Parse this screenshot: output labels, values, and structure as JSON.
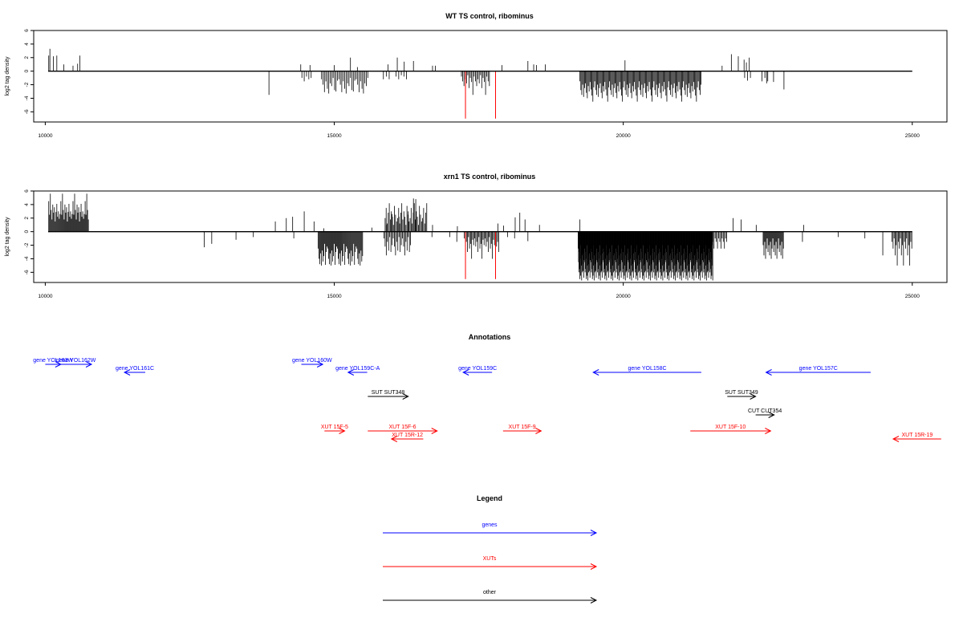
{
  "colors": {
    "genes": "#0000ff",
    "xuts": "#ff0000",
    "other": "#000000",
    "marker": "#ff0000"
  },
  "chart_data": [
    {
      "type": "bar",
      "title": "WT TS control, ribominus",
      "ylabel": "log2 tag density",
      "xlim": [
        9800,
        25600
      ],
      "ylim": [
        -7.5,
        6
      ],
      "xticks": [
        10000,
        15000,
        20000,
        25000
      ],
      "yticks": [
        -6,
        -4,
        -2,
        0,
        2,
        4,
        6
      ],
      "baseline": {
        "x_from": 10050,
        "x_to": 25000
      },
      "markers": [
        17270,
        17790
      ],
      "marker_y": -7,
      "positive_spikes": [
        [
          10060,
          2.3
        ],
        [
          10080,
          3.3
        ],
        [
          10140,
          2.2
        ],
        [
          10200,
          2.3
        ],
        [
          10320,
          1.0
        ],
        [
          10480,
          0.8
        ],
        [
          10560,
          1.1
        ],
        [
          10600,
          2.3
        ],
        [
          14420,
          1.0
        ],
        [
          14580,
          0.9
        ],
        [
          15000,
          0.9
        ],
        [
          15280,
          2.0
        ],
        [
          15400,
          0.6
        ],
        [
          15930,
          1.0
        ],
        [
          16090,
          2.0
        ],
        [
          16210,
          1.4
        ],
        [
          16370,
          1.5
        ],
        [
          16700,
          0.8
        ],
        [
          16750,
          0.8
        ],
        [
          17900,
          0.9
        ],
        [
          18350,
          1.5
        ],
        [
          18450,
          1.0
        ],
        [
          18500,
          0.9
        ],
        [
          18650,
          1.0
        ],
        [
          20030,
          1.6
        ],
        [
          21710,
          0.8
        ],
        [
          21870,
          2.5
        ],
        [
          21990,
          2.2
        ],
        [
          22090,
          1.7
        ],
        [
          22130,
          1.3
        ],
        [
          22180,
          2.0
        ]
      ],
      "dense_regions": [
        {
          "from": 14440,
          "to": 14600,
          "step": 40,
          "pattern": [
            -1.0,
            -1.5,
            -0.8,
            -1.2
          ]
        },
        {
          "from": 14780,
          "to": 15600,
          "step": 25,
          "pattern": [
            -1.2,
            -2.0,
            -3.1,
            -1.5,
            -2.6,
            -3.3,
            -1.8,
            -2.2,
            -1.0,
            -2.8,
            -3.0,
            -1.4
          ]
        },
        {
          "from": 15850,
          "to": 15950,
          "step": 50,
          "pattern": [
            -1.2,
            -0.8
          ]
        },
        {
          "from": 16070,
          "to": 16250,
          "step": 45,
          "pattern": [
            -0.8,
            -1.2,
            -0.6
          ]
        },
        {
          "from": 17200,
          "to": 17700,
          "step": 22,
          "pattern": [
            -0.8,
            -1.5,
            -2.2,
            -1.2,
            -1.8,
            -0.6,
            -2.5,
            -1.0,
            -1.6,
            -3.5
          ]
        },
        {
          "from": 19250,
          "to": 21350,
          "step": 16,
          "pattern": [
            -1.5,
            -2.8,
            -3.5,
            -2.0,
            -3.8,
            -2.5,
            -1.8,
            -3.2,
            -4.0,
            -2.2,
            -3.0,
            -1.6,
            -2.7,
            -3.6,
            -4.5,
            -2.4
          ]
        },
        {
          "from": 22100,
          "to": 22200,
          "step": 50,
          "pattern": [
            -1.0,
            -1.4
          ]
        },
        {
          "from": 22400,
          "to": 22500,
          "step": 50,
          "pattern": [
            -1.5,
            -1.0
          ]
        }
      ],
      "negative_spikes": [
        [
          13870,
          -3.5
        ],
        [
          22480,
          -1.8
        ],
        [
          22600,
          -1.6
        ],
        [
          22780,
          -2.7
        ]
      ]
    },
    {
      "type": "bar",
      "title": "xrn1 TS control, ribominus",
      "ylabel": "log2 tag density",
      "xlim": [
        9800,
        25600
      ],
      "ylim": [
        -7.5,
        6
      ],
      "xticks": [
        10000,
        15000,
        20000,
        25000
      ],
      "yticks": [
        -6,
        -4,
        -2,
        0,
        2,
        4,
        6
      ],
      "baseline": {
        "x_from": 10050,
        "x_to": 25000
      },
      "markers": [
        17270,
        17790
      ],
      "marker_y": -7,
      "positive_spikes": [
        [
          13980,
          1.5
        ],
        [
          14170,
          2.0
        ],
        [
          14280,
          2.2
        ],
        [
          14480,
          3.0
        ],
        [
          14650,
          1.5
        ],
        [
          14820,
          0.5
        ],
        [
          15650,
          0.6
        ],
        [
          15900,
          1.0
        ],
        [
          16000,
          2.6
        ],
        [
          16120,
          2.2
        ],
        [
          16280,
          3.0
        ],
        [
          16370,
          4.9
        ],
        [
          16410,
          4.8
        ],
        [
          16700,
          1.0
        ],
        [
          17130,
          0.8
        ],
        [
          17830,
          1.2
        ],
        [
          17930,
          0.9
        ],
        [
          18130,
          2.1
        ],
        [
          18210,
          2.8
        ],
        [
          18300,
          1.8
        ],
        [
          18550,
          1.0
        ],
        [
          19250,
          1.8
        ],
        [
          21900,
          2.0
        ],
        [
          22040,
          1.8
        ],
        [
          22300,
          1.0
        ],
        [
          23120,
          1.0
        ]
      ],
      "dense_regions": [
        {
          "from": 10060,
          "to": 10750,
          "step": 14,
          "pattern": [
            4.5,
            2.5,
            5.6,
            3.2,
            1.8,
            4.0,
            2.8,
            3.6,
            1.5,
            2.9,
            4.1,
            2.2,
            3.0,
            1.9,
            2.6
          ]
        },
        {
          "from": 14720,
          "to": 15500,
          "step": 14,
          "pattern": [
            -2.5,
            -4.0,
            -4.8,
            -3.2,
            -5.0,
            -2.8,
            -4.4,
            -3.6,
            -1.8,
            -4.9,
            -3.0,
            -2.2
          ]
        },
        {
          "from": 15880,
          "to": 16600,
          "step": 18,
          "pattern": [
            2.0,
            3.5,
            1.2,
            2.8,
            4.2,
            1.8,
            3.0,
            2.2,
            1.0,
            3.8,
            2.5,
            1.5
          ]
        },
        {
          "from": 15860,
          "to": 16320,
          "step": 20,
          "pattern": [
            -1.0,
            -2.2,
            -3.5,
            -1.5,
            -2.8,
            -0.8,
            -3.0,
            -2.0
          ]
        },
        {
          "from": 17250,
          "to": 17850,
          "step": 18,
          "pattern": [
            -1.0,
            -2.2,
            -1.5,
            -3.0,
            -0.8,
            -2.5,
            -1.8,
            -4.0,
            -1.2,
            -2.0
          ]
        },
        {
          "from": 19220,
          "to": 21550,
          "step": 6,
          "pattern": [
            -2.5,
            -4.5,
            -6.0,
            -3.0,
            -5.5,
            -7.0,
            -4.0,
            -6.5,
            -2.0,
            -5.0,
            -7.2,
            -3.5,
            -6.0,
            -4.8,
            -5.8,
            -3.2,
            -6.8,
            -4.2
          ]
        },
        {
          "from": 21550,
          "to": 21800,
          "step": 20,
          "pattern": [
            -1.5,
            -2.5,
            -1.0
          ]
        },
        {
          "from": 22420,
          "to": 22780,
          "step": 14,
          "pattern": [
            -2.0,
            -3.5,
            -1.5,
            -4.0,
            -2.5,
            -1.0,
            -3.0
          ]
        },
        {
          "from": 24650,
          "to": 25000,
          "step": 18,
          "pattern": [
            -1.5,
            -2.5,
            -1.0,
            -3.5,
            -2.0,
            -5.0
          ]
        }
      ],
      "negative_spikes": [
        [
          12750,
          -2.3
        ],
        [
          12880,
          -1.8
        ],
        [
          13300,
          -1.2
        ],
        [
          13600,
          -0.8
        ],
        [
          14300,
          -1.0
        ],
        [
          16690,
          -0.8
        ],
        [
          17000,
          -0.8
        ],
        [
          17120,
          -1.5
        ],
        [
          18000,
          -0.8
        ],
        [
          18120,
          -1.0
        ],
        [
          18350,
          -1.4
        ],
        [
          23100,
          -1.5
        ],
        [
          23720,
          -0.8
        ],
        [
          24180,
          -1.0
        ],
        [
          24490,
          -3.5
        ]
      ]
    }
  ],
  "annotations": {
    "title": "Annotations",
    "items": [
      {
        "label": "gene YOL163W",
        "category": "genes",
        "x1": 10000,
        "x2": 10270,
        "row": 0,
        "dir": "right"
      },
      {
        "label": "gene YOL162W",
        "category": "genes",
        "x1": 10260,
        "x2": 10800,
        "row": 0,
        "dir": "right"
      },
      {
        "label": "gene YOL161C",
        "category": "genes",
        "x1": 11370,
        "x2": 11730,
        "row": 1,
        "dir": "left"
      },
      {
        "label": "gene YOL160W",
        "category": "genes",
        "x1": 14430,
        "x2": 14800,
        "row": 0,
        "dir": "right"
      },
      {
        "label": "gene YOL159C-A",
        "category": "genes",
        "x1": 15240,
        "x2": 15570,
        "row": 1,
        "dir": "left"
      },
      {
        "label": "gene YOL159C",
        "category": "genes",
        "x1": 17230,
        "x2": 17730,
        "row": 1,
        "dir": "left"
      },
      {
        "label": "gene YOL158C",
        "category": "genes",
        "x1": 19480,
        "x2": 21350,
        "row": 1,
        "dir": "left"
      },
      {
        "label": "gene YOL157C",
        "category": "genes",
        "x1": 22470,
        "x2": 24280,
        "row": 1,
        "dir": "left"
      },
      {
        "label": "SUT SUT348",
        "category": "other",
        "x1": 15580,
        "x2": 16280,
        "row": 2,
        "dir": "right"
      },
      {
        "label": "SUT SUT349",
        "category": "other",
        "x1": 21800,
        "x2": 22290,
        "row": 2,
        "dir": "right"
      },
      {
        "label": "CUT CUT354",
        "category": "other",
        "x1": 22290,
        "x2": 22610,
        "row": 3,
        "dir": "right"
      },
      {
        "label": "XUT 15F-5",
        "category": "xuts",
        "x1": 14830,
        "x2": 15180,
        "row": 4,
        "dir": "right"
      },
      {
        "label": "XUT 15F-6",
        "category": "xuts",
        "x1": 15580,
        "x2": 16780,
        "row": 4,
        "dir": "right"
      },
      {
        "label": "XUT 15F-9",
        "category": "xuts",
        "x1": 17920,
        "x2": 18580,
        "row": 4,
        "dir": "right"
      },
      {
        "label": "XUT 15F-10",
        "category": "xuts",
        "x1": 21160,
        "x2": 22550,
        "row": 4,
        "dir": "right"
      },
      {
        "label": "XUT 15R-12",
        "category": "xuts",
        "x1": 15990,
        "x2": 16540,
        "row": 5,
        "dir": "left"
      },
      {
        "label": "XUT 15R-19",
        "category": "xuts",
        "x1": 24670,
        "x2": 25500,
        "row": 5,
        "dir": "left"
      }
    ]
  },
  "legend": {
    "title": "Legend",
    "entries": [
      {
        "label": "genes",
        "category": "genes"
      },
      {
        "label": "XUTs",
        "category": "xuts"
      },
      {
        "label": "other",
        "category": "other"
      }
    ]
  }
}
